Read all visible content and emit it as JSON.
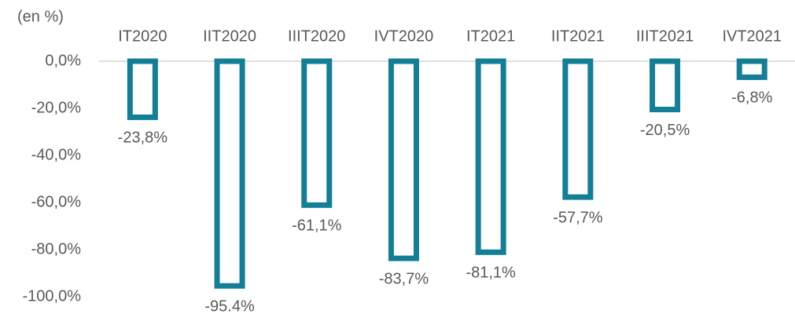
{
  "chart_data": {
    "type": "bar",
    "title": "(en %)",
    "categories": [
      "IT2020",
      "IIT2020",
      "IIIT2020",
      "IVT2020",
      "IT2021",
      "IIT2021",
      "IIIT2021",
      "IVT2021"
    ],
    "values": [
      -23.8,
      -95.4,
      -61.1,
      -83.7,
      -81.1,
      -57.7,
      -20.5,
      -6.8
    ],
    "value_labels": [
      "-23,8%",
      "-95.4%",
      "-61,1%",
      "-83,7%",
      "-81,1%",
      "-57,7%",
      "-20,5%",
      "-6,8%"
    ],
    "color": "#137f97",
    "ylim": [
      -100,
      0
    ],
    "yticks": [
      {
        "value": 0,
        "label": "0,0%"
      },
      {
        "value": -20,
        "label": "-20,0%"
      },
      {
        "value": -40,
        "label": "-40,0%"
      },
      {
        "value": -60,
        "label": "-60,0%"
      },
      {
        "value": -80,
        "label": "-80,0%"
      },
      {
        "value": -100,
        "label": "-100,0%"
      }
    ],
    "grid": false
  }
}
